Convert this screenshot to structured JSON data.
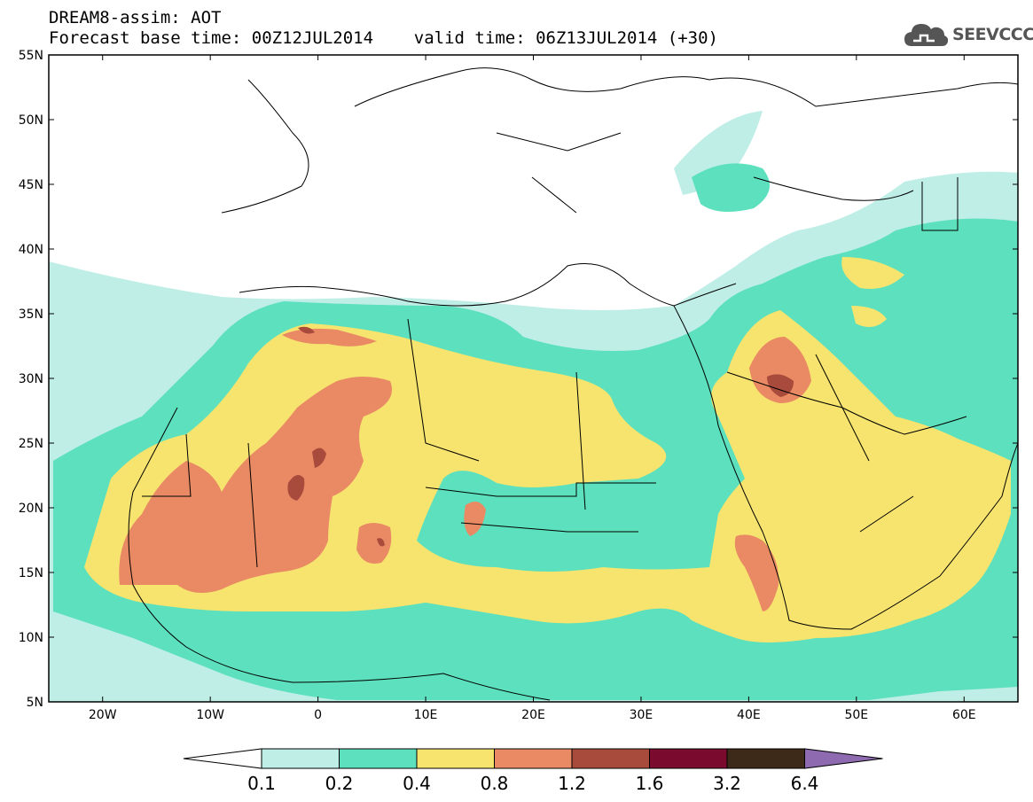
{
  "header": {
    "line1": "DREAM8-assim: AOT",
    "line2": "Forecast base time: 00Z12JUL2014    valid time: 06Z13JUL2014 (+30)"
  },
  "logo": {
    "text": "SEEVCCC",
    "icon": "cloud-icon"
  },
  "map": {
    "lat_labels": [
      "55N",
      "50N",
      "45N",
      "40N",
      "35N",
      "30N",
      "25N",
      "20N",
      "15N",
      "10N",
      "5N"
    ],
    "lon_labels": [
      "20W",
      "10W",
      "0",
      "10E",
      "20E",
      "30E",
      "40E",
      "50E",
      "60E"
    ],
    "lat_range": [
      5,
      55
    ],
    "lon_range": [
      -25,
      65
    ]
  },
  "colorbar": {
    "labels": [
      "0.1",
      "0.2",
      "0.4",
      "0.8",
      "1.2",
      "1.6",
      "3.2",
      "6.4"
    ],
    "colors": [
      "#ffffff",
      "#bfeee6",
      "#5ce0bd",
      "#f6e46f",
      "#e98a64",
      "#a84b3c",
      "#7a0b2e",
      "#3d2a18",
      "#8e6bb0"
    ]
  }
}
